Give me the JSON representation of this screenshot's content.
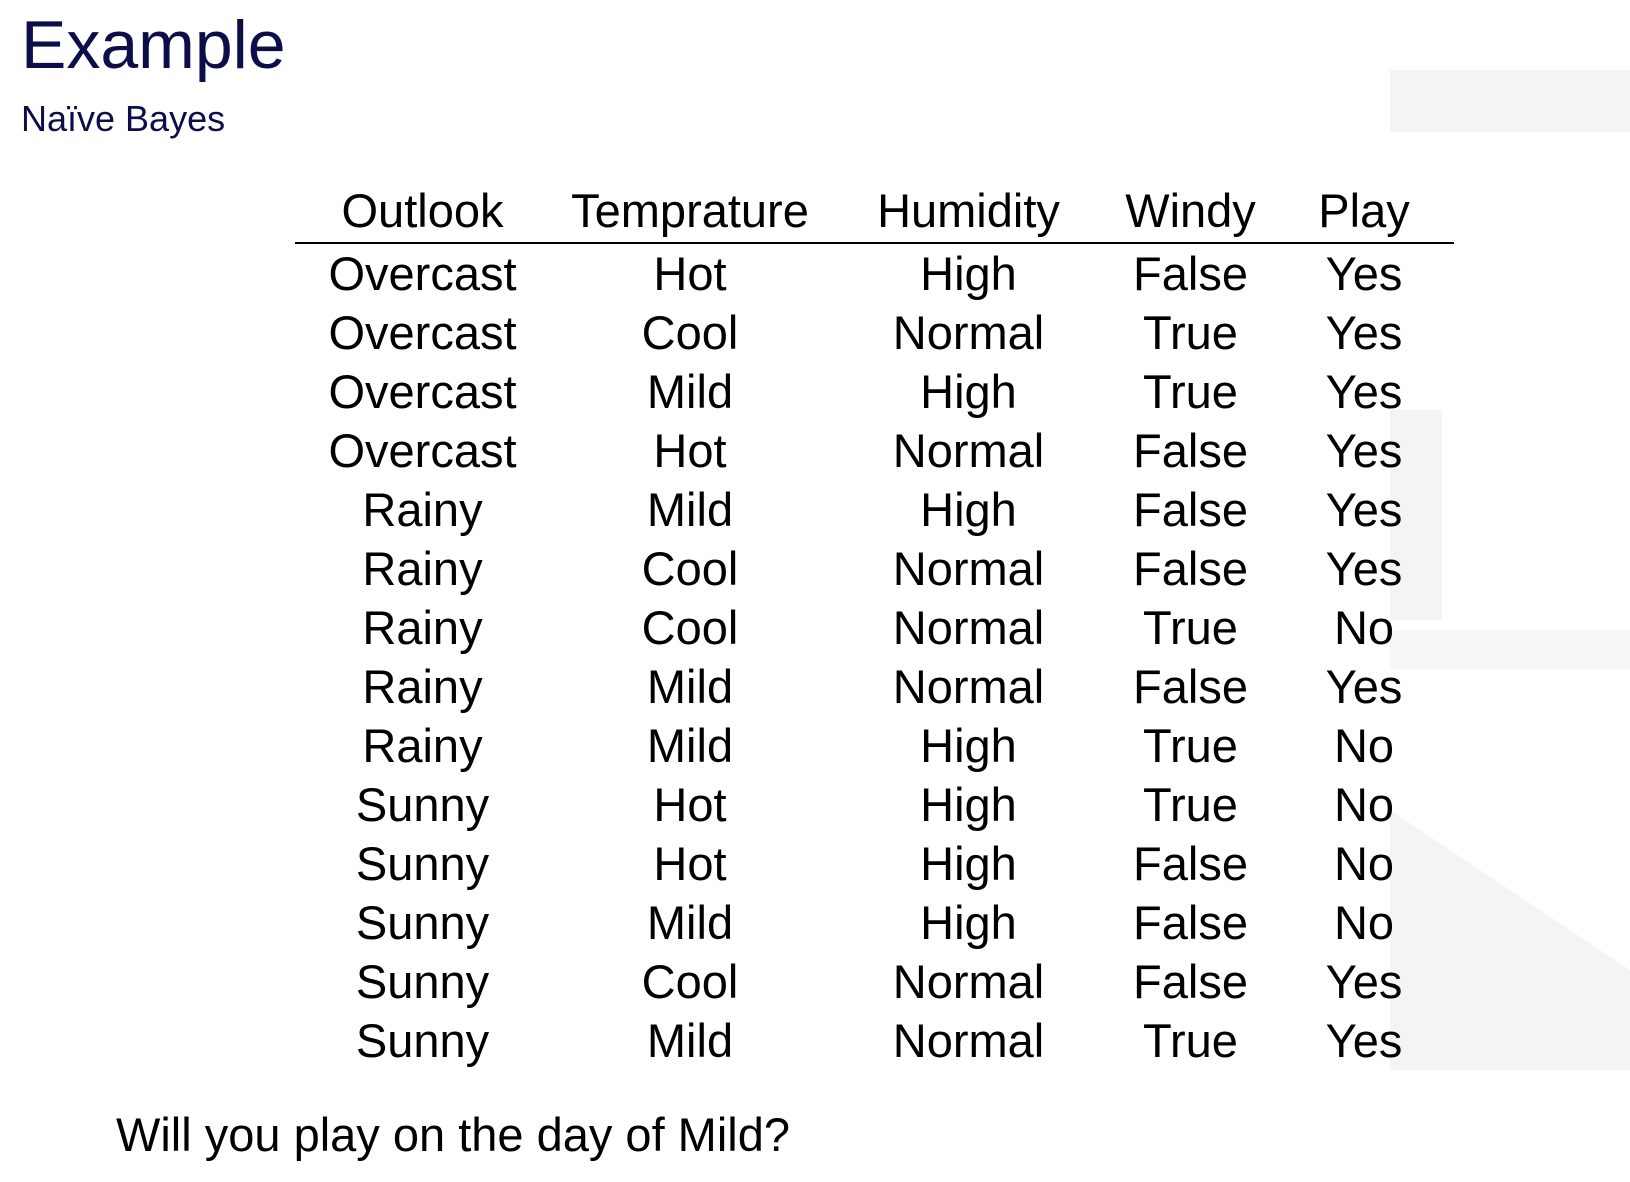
{
  "slide": {
    "title": "Example",
    "subtitle": "Naïve Bayes",
    "question": "Will you play on the day of Mild?"
  },
  "table": {
    "headers": [
      "Outlook",
      "Temprature",
      "Humidity",
      "Windy",
      "Play"
    ],
    "rows": [
      [
        "Overcast",
        "Hot",
        "High",
        "False",
        "Yes"
      ],
      [
        "Overcast",
        "Cool",
        "Normal",
        "True",
        "Yes"
      ],
      [
        "Overcast",
        "Mild",
        "High",
        "True",
        "Yes"
      ],
      [
        "Overcast",
        "Hot",
        "Normal",
        "False",
        "Yes"
      ],
      [
        "Rainy",
        "Mild",
        "High",
        "False",
        "Yes"
      ],
      [
        "Rainy",
        "Cool",
        "Normal",
        "False",
        "Yes"
      ],
      [
        "Rainy",
        "Cool",
        "Normal",
        "True",
        "No"
      ],
      [
        "Rainy",
        "Mild",
        "Normal",
        "False",
        "Yes"
      ],
      [
        "Rainy",
        "Mild",
        "High",
        "True",
        "No"
      ],
      [
        "Sunny",
        "Hot",
        "High",
        "True",
        "No"
      ],
      [
        "Sunny",
        "Hot",
        "High",
        "False",
        "No"
      ],
      [
        "Sunny",
        "Mild",
        "High",
        "False",
        "No"
      ],
      [
        "Sunny",
        "Cool",
        "Normal",
        "False",
        "Yes"
      ],
      [
        "Sunny",
        "Mild",
        "Normal",
        "True",
        "Yes"
      ]
    ]
  },
  "colors": {
    "title": "#0d0d4a",
    "text": "#000000",
    "watermark": "#f4f4f4"
  }
}
